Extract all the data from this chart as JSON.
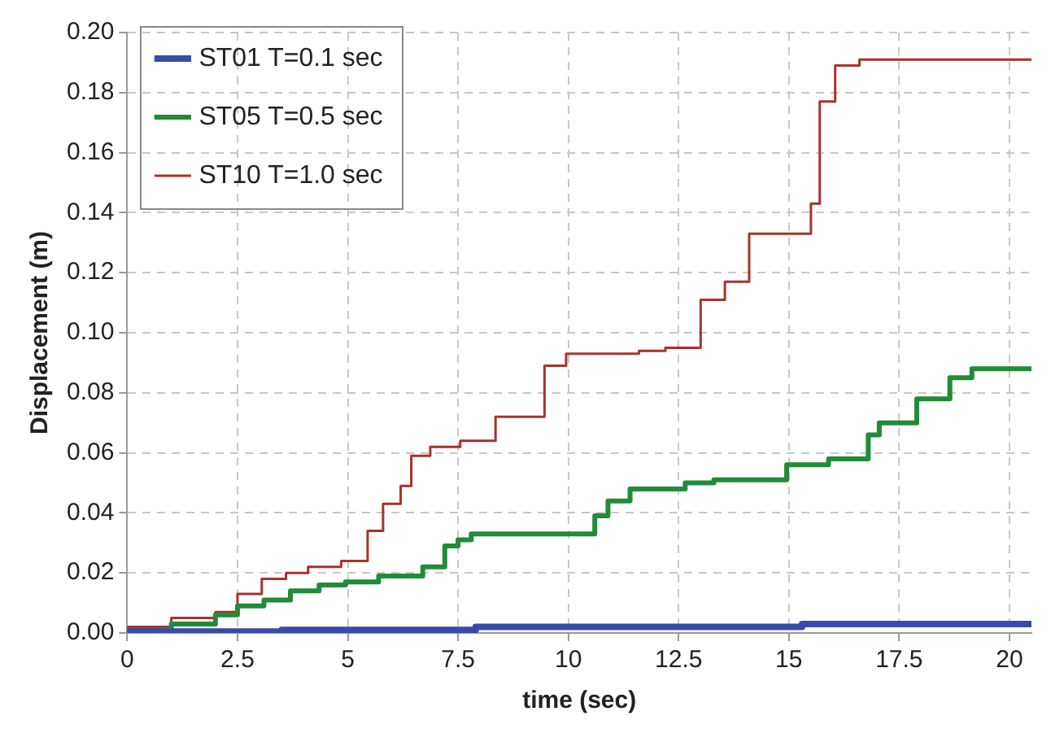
{
  "chart_data": {
    "type": "step",
    "xlabel": "time (sec)",
    "ylabel": "Displacement (m)",
    "xlim": [
      0,
      20.5
    ],
    "xticks": [
      0,
      2.5,
      5,
      7.5,
      10,
      12.5,
      15,
      17.5,
      20
    ],
    "ylim": [
      0,
      0.2
    ],
    "yticks": [
      {
        "value": 0,
        "label": "0.00"
      },
      {
        "value": 0.02,
        "label": "0.02"
      },
      {
        "value": 0.04,
        "label": "0.04"
      },
      {
        "value": 0.06,
        "label": "0.06"
      },
      {
        "value": 0.08,
        "label": "0.08"
      },
      {
        "value": 0.1,
        "label": "0.10"
      },
      {
        "value": 0.12,
        "label": "0.12"
      },
      {
        "value": 0.14,
        "label": "0.14"
      },
      {
        "value": 0.16,
        "label": "0.16"
      },
      {
        "value": 0.18,
        "label": "0.18"
      },
      {
        "value": 0.2,
        "label": "0.20"
      }
    ],
    "grid": true,
    "legend": "top left",
    "line_style": "solid",
    "marker": "none",
    "series": [
      {
        "name": "ST01 T=0.1 sec",
        "color": "#3b4aa8",
        "x": [
          0,
          3.5,
          7.9,
          15.3,
          20.1,
          20.5
        ],
        "values": [
          0,
          0.0005,
          0.001,
          0.002,
          0.003,
          0.003
        ]
      },
      {
        "name": "ST05 T=0.5 sec",
        "color": "#228b3a",
        "x": [
          0,
          1,
          2,
          2.5,
          3.1,
          3.7,
          4.35,
          4.95,
          5.7,
          6.7,
          7.2,
          7.5,
          7.8,
          10.6,
          10.9,
          11.4,
          12.65,
          13.3,
          14.95,
          15.9,
          16.8,
          17.05,
          17.9,
          18.65,
          19.15,
          19.45,
          20.5
        ],
        "values": [
          0,
          0.001,
          0.003,
          0.006,
          0.009,
          0.011,
          0.014,
          0.016,
          0.017,
          0.019,
          0.022,
          0.029,
          0.031,
          0.033,
          0.039,
          0.044,
          0.048,
          0.05,
          0.051,
          0.056,
          0.058,
          0.066,
          0.07,
          0.078,
          0.085,
          0.088,
          0.088
        ]
      },
      {
        "name": "ST10 T=1.0 sec",
        "color": "#a8322d",
        "x": [
          0,
          1,
          2,
          2.5,
          3.05,
          3.6,
          4.1,
          4.85,
          5.45,
          5.8,
          6.2,
          6.44,
          6.87,
          7.55,
          8.35,
          9.46,
          9.95,
          11.6,
          12.2,
          13,
          13.55,
          14.1,
          15.5,
          15.7,
          16.05,
          16.6,
          17.5,
          20.5
        ],
        "values": [
          0,
          0.002,
          0.005,
          0.007,
          0.013,
          0.018,
          0.02,
          0.022,
          0.024,
          0.034,
          0.043,
          0.049,
          0.059,
          0.062,
          0.064,
          0.072,
          0.089,
          0.093,
          0.094,
          0.095,
          0.111,
          0.117,
          0.133,
          0.143,
          0.177,
          0.189,
          0.191,
          0.191
        ]
      }
    ]
  }
}
